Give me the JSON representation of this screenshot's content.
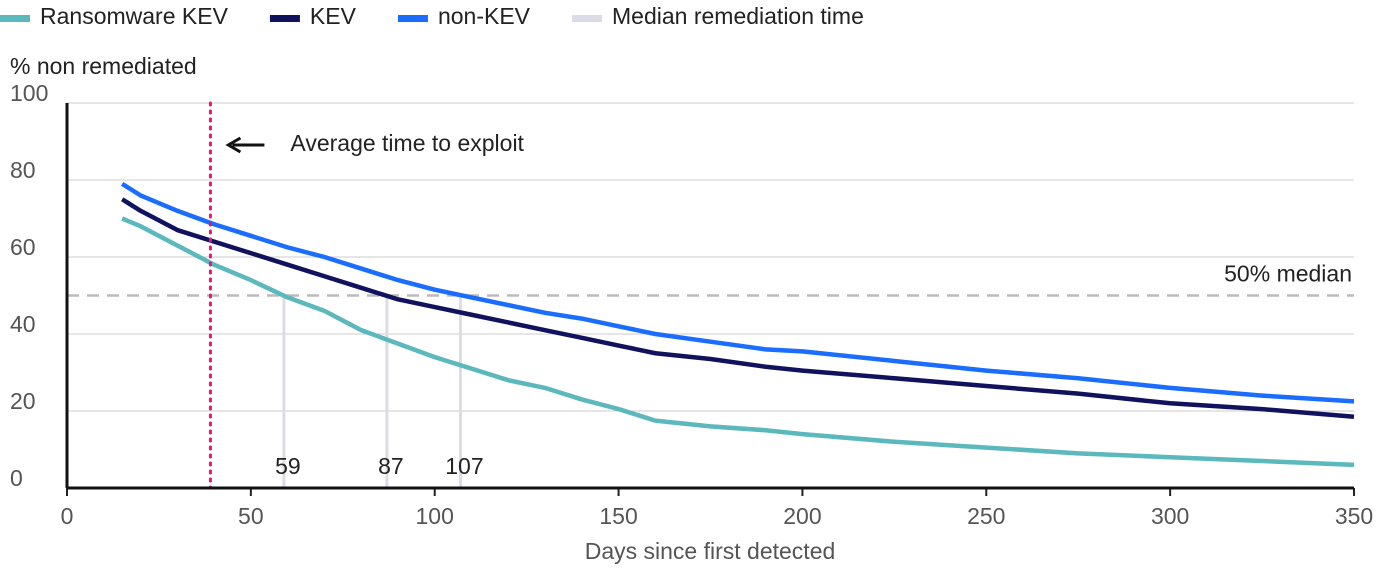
{
  "chart_data": {
    "type": "line",
    "y_label": "% non remediated",
    "x_label": "Days since first detected",
    "x": [
      15,
      20,
      30,
      40,
      50,
      60,
      70,
      80,
      90,
      100,
      110,
      120,
      130,
      140,
      150,
      160,
      175,
      190,
      200,
      225,
      250,
      275,
      300,
      325,
      350
    ],
    "series": [
      {
        "name": "Ransomware KEV",
        "color": "#5bb8bd",
        "values": [
          70,
          68,
          63,
          58,
          54,
          49.5,
          46,
          41,
          37.5,
          34,
          31,
          28,
          26,
          23,
          20.5,
          17.5,
          16,
          15,
          14,
          12,
          10.5,
          9,
          8,
          7,
          6
        ]
      },
      {
        "name": "KEV",
        "color": "#10125e",
        "values": [
          75,
          72,
          67,
          64,
          61,
          58,
          55,
          52,
          49,
          47,
          45,
          43,
          41,
          39,
          37,
          35,
          33.5,
          31.5,
          30.5,
          28.5,
          26.5,
          24.5,
          22,
          20.5,
          18.5
        ]
      },
      {
        "name": "non-KEV",
        "color": "#1a6dff",
        "values": [
          79,
          76,
          72,
          68.5,
          65.5,
          62.5,
          60,
          57,
          54,
          51.5,
          49.5,
          47.5,
          45.5,
          44,
          42,
          40,
          38,
          36,
          35.5,
          33,
          30.5,
          28.5,
          26,
          24,
          22.5
        ]
      }
    ],
    "median_legend": "Median remediation time",
    "median_color": "#dcdce6",
    "median_days": [
      59,
      87,
      107
    ],
    "median_level": 50,
    "median_level_label": "50% median",
    "exploit_day": 39,
    "exploit_label": "Average time to exploit",
    "exploit_color": "#e0177a",
    "xlim": [
      0,
      350
    ],
    "xticks": [
      0,
      50,
      100,
      150,
      200,
      250,
      300,
      350
    ],
    "ylim": [
      0,
      100
    ],
    "yticks": [
      0,
      20,
      40,
      60,
      80,
      100
    ],
    "grid": true
  }
}
